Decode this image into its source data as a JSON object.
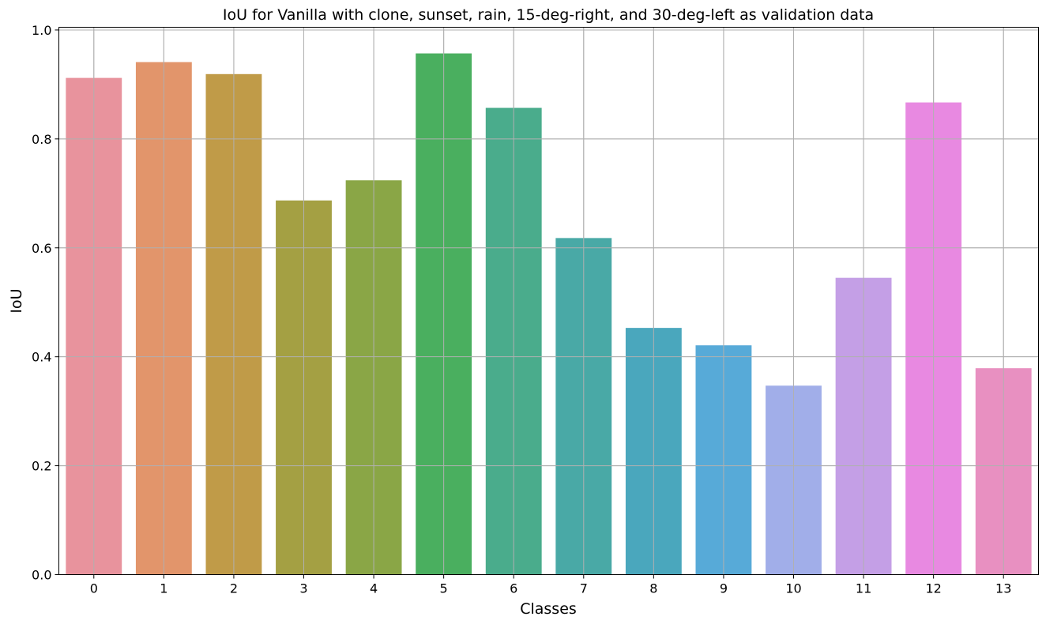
{
  "chart_data": {
    "type": "bar",
    "title": "IoU for Vanilla with clone, sunset, rain, 15-deg-right, and 30-deg-left as validation data",
    "xlabel": "Classes",
    "ylabel": "IoU",
    "categories": [
      "0",
      "1",
      "2",
      "3",
      "4",
      "5",
      "6",
      "7",
      "8",
      "9",
      "10",
      "11",
      "12",
      "13"
    ],
    "values": [
      0.912,
      0.941,
      0.919,
      0.687,
      0.724,
      0.957,
      0.857,
      0.618,
      0.453,
      0.421,
      0.347,
      0.545,
      0.867,
      0.379
    ],
    "colors": [
      "#e8939d",
      "#e2956b",
      "#c09b48",
      "#a4a043",
      "#8aa646",
      "#4aaf5f",
      "#4aac8c",
      "#49a9a6",
      "#4aa7bd",
      "#57aad8",
      "#a1aee9",
      "#c49fe6",
      "#e889e1",
      "#e890c1"
    ],
    "ylim": [
      0,
      1.005
    ],
    "yticks": [
      "0.0",
      "0.2",
      "0.4",
      "0.6",
      "0.8",
      "1.0"
    ],
    "grid": true
  }
}
